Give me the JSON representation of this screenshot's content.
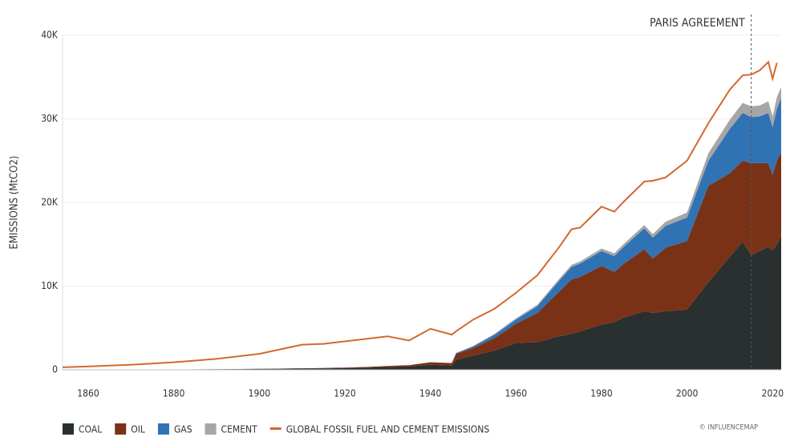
{
  "chart_data": {
    "type": "area",
    "y_label": "EMISSIONS (MtCO2)",
    "source": "© INFLUENCEMAP",
    "annotation": {
      "text": "PARIS AGREEMENT",
      "x": 2015
    },
    "x": [
      1854,
      1860,
      1870,
      1880,
      1890,
      1900,
      1910,
      1915,
      1920,
      1925,
      1930,
      1935,
      1940,
      1945,
      1946,
      1950,
      1955,
      1960,
      1965,
      1970,
      1973,
      1975,
      1980,
      1983,
      1985,
      1990,
      1992,
      1995,
      2000,
      2005,
      2010,
      2013,
      2015,
      2017,
      2019,
      2020,
      2021,
      2022
    ],
    "series": [
      {
        "name": "COAL",
        "color": "#2a2f2f",
        "stacked": true,
        "values": [
          0,
          10,
          20,
          40,
          60,
          100,
          150,
          170,
          200,
          250,
          350,
          400,
          600,
          500,
          1200,
          1700,
          2300,
          3200,
          3300,
          4000,
          4300,
          4600,
          5400,
          5700,
          6200,
          7000,
          6800,
          7000,
          7200,
          10500,
          13500,
          15300,
          13700,
          14200,
          14700,
          14300,
          15000,
          16000
        ]
      },
      {
        "name": "OIL",
        "color": "#7a3217",
        "stacked": true,
        "values": [
          0,
          0,
          0,
          0,
          10,
          20,
          30,
          40,
          60,
          80,
          100,
          150,
          300,
          300,
          700,
          900,
          1500,
          2300,
          3500,
          5300,
          6500,
          6500,
          7000,
          6000,
          6400,
          7400,
          6500,
          7600,
          8200,
          11500,
          10000,
          9700,
          11000,
          10500,
          10000,
          9000,
          10000,
          10000
        ]
      },
      {
        "name": "GAS",
        "color": "#2f73b5",
        "stacked": true,
        "values": [
          0,
          0,
          0,
          0,
          0,
          0,
          0,
          0,
          0,
          0,
          0,
          0,
          0,
          0,
          100,
          200,
          400,
          500,
          800,
          1300,
          1500,
          1600,
          1800,
          1900,
          2000,
          2500,
          2500,
          2600,
          2800,
          3000,
          5300,
          5700,
          5500,
          5600,
          6000,
          5700,
          6200,
          6500
        ]
      },
      {
        "name": "CEMENT",
        "color": "#a6a6a6",
        "stacked": true,
        "values": [
          0,
          0,
          0,
          0,
          0,
          0,
          0,
          0,
          0,
          0,
          0,
          0,
          0,
          0,
          0,
          50,
          100,
          150,
          180,
          200,
          250,
          250,
          300,
          320,
          350,
          400,
          420,
          500,
          600,
          900,
          1100,
          1200,
          1300,
          1300,
          1400,
          1300,
          1400,
          1300
        ]
      },
      {
        "name": "GLOBAL FOSSIL FUEL AND CEMENT EMISSIONS",
        "color": "#d3682f",
        "stacked": false,
        "values": [
          300,
          400,
          600,
          900,
          1300,
          1900,
          3000,
          3100,
          3400,
          3700,
          4000,
          3500,
          4900,
          4200,
          4600,
          6000,
          7300,
          9200,
          11300,
          14600,
          16800,
          17000,
          19500,
          18900,
          20000,
          22500,
          22600,
          23000,
          25000,
          29500,
          33500,
          35200,
          35300,
          35800,
          36800,
          34800,
          36700,
          null
        ]
      }
    ],
    "xlim": [
      1854,
      2022
    ],
    "xticks": [
      1860,
      1880,
      1900,
      1920,
      1940,
      1960,
      1980,
      2000,
      2020
    ],
    "ylim": [
      0,
      40000
    ],
    "yticks": [
      0,
      {
        "value": 10000,
        "label": "10K"
      },
      {
        "value": 20000,
        "label": "20K"
      },
      {
        "value": 30000,
        "label": "30K"
      },
      {
        "value": 40000,
        "label": "40K"
      }
    ],
    "grid": true
  }
}
